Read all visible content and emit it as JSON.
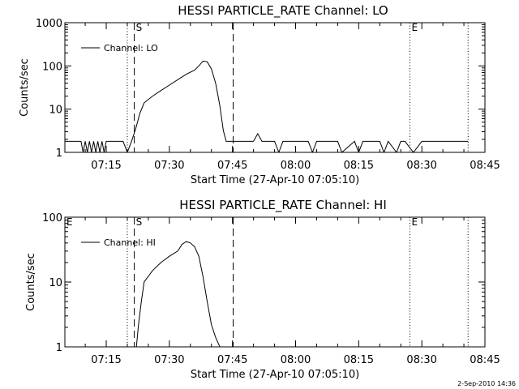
{
  "footer": {
    "stamp": "2-Sep-2010 14:36"
  },
  "chart_data": [
    {
      "type": "line",
      "title": "HESSI PARTICLE_RATE Channel: LO",
      "xlabel": "Start Time (27-Apr-10 07:05:10)",
      "ylabel": "Counts/sec",
      "yscale": "log",
      "xlim": [
        "07:05:10",
        "08:45:00"
      ],
      "ylim": [
        1,
        1000
      ],
      "xticks": [
        "07:15",
        "07:30",
        "07:45",
        "08:00",
        "08:15",
        "08:30",
        "08:45"
      ],
      "yticks": [
        "1",
        "10",
        "100",
        "1000"
      ],
      "legend": {
        "position": "top-left",
        "entries": [
          "Channel: LO"
        ]
      },
      "markers": [
        {
          "time": "07:20:00",
          "style": "dotted",
          "label": ""
        },
        {
          "time": "07:21:40",
          "style": "dashed",
          "label": "S"
        },
        {
          "time": "07:45:10",
          "style": "dashed",
          "label": ""
        },
        {
          "time": "08:27:10",
          "style": "dotted",
          "label": "E"
        },
        {
          "time": "08:41:00",
          "style": "dotted",
          "label": ""
        }
      ],
      "series": [
        {
          "name": "Channel: LO",
          "x": [
            "07:05:10",
            "07:09:00",
            "07:09:30",
            "07:10:00",
            "07:10:30",
            "07:11:00",
            "07:11:30",
            "07:12:00",
            "07:12:30",
            "07:13:00",
            "07:13:30",
            "07:14:00",
            "07:14:30",
            "07:15:00",
            "07:16:00",
            "07:17:00",
            "07:18:00",
            "07:19:00",
            "07:20:00",
            "07:21:00",
            "07:22:00",
            "07:23:00",
            "07:24:00",
            "07:26:00",
            "07:28:00",
            "07:30:00",
            "07:32:00",
            "07:34:00",
            "07:36:00",
            "07:37:00",
            "07:38:00",
            "07:39:00",
            "07:40:00",
            "07:41:00",
            "07:42:00",
            "07:42:50",
            "07:43:30",
            "07:45:00",
            "07:48:00",
            "07:50:00",
            "07:51:00",
            "07:52:00",
            "07:55:00",
            "07:56:00",
            "07:57:00",
            "07:58:00",
            "08:00:00",
            "08:03:00",
            "08:04:00",
            "08:05:00",
            "08:08:00",
            "08:10:00",
            "08:11:00",
            "08:14:00",
            "08:15:00",
            "08:16:00",
            "08:18:00",
            "08:20:00",
            "08:21:00",
            "08:22:00",
            "08:24:00",
            "08:25:00",
            "08:26:00",
            "08:28:00",
            "08:30:00",
            "08:33:00",
            "08:36:00",
            "08:40:00",
            "08:41:00"
          ],
          "y": [
            1.8,
            1.8,
            1,
            1.8,
            1,
            1.8,
            1,
            1.8,
            1,
            1.8,
            1,
            1.8,
            1,
            1.8,
            1.8,
            1.8,
            1.8,
            1.8,
            1,
            1.8,
            3.5,
            8,
            14,
            20,
            27,
            36,
            48,
            64,
            80,
            100,
            130,
            125,
            85,
            40,
            12,
            3.2,
            1.8,
            1.8,
            1.8,
            1.8,
            2.7,
            1.8,
            1.8,
            1,
            1.8,
            1.8,
            1.8,
            1.8,
            1,
            1.8,
            1.8,
            1.8,
            1,
            1.8,
            1,
            1.8,
            1.8,
            1.8,
            1,
            1.8,
            1,
            1.8,
            1.8,
            1,
            1.8,
            1.8,
            1.8,
            1.8,
            1.8
          ]
        }
      ]
    },
    {
      "type": "line",
      "title": "HESSI PARTICLE_RATE Channel: HI",
      "xlabel": "Start Time (27-Apr-10 07:05:10)",
      "ylabel": "Counts/sec",
      "yscale": "log",
      "xlim": [
        "07:05:10",
        "08:45:00"
      ],
      "ylim": [
        1,
        100
      ],
      "xticks": [
        "07:15",
        "07:30",
        "07:45",
        "08:00",
        "08:15",
        "08:30",
        "08:45"
      ],
      "yticks": [
        "1",
        "10",
        "100"
      ],
      "legend": {
        "position": "top-left",
        "entries": [
          "Channel: HI"
        ]
      },
      "corner_label": "E",
      "markers": [
        {
          "time": "07:20:00",
          "style": "dotted",
          "label": ""
        },
        {
          "time": "07:21:40",
          "style": "dashed",
          "label": "S"
        },
        {
          "time": "07:45:10",
          "style": "dashed",
          "label": ""
        },
        {
          "time": "08:27:10",
          "style": "dotted",
          "label": "E"
        },
        {
          "time": "08:41:00",
          "style": "dotted",
          "label": ""
        }
      ],
      "series": [
        {
          "name": "Channel: HI",
          "x": [
            "07:22:10",
            "07:22:40",
            "07:23:20",
            "07:24:00",
            "07:26:00",
            "07:28:00",
            "07:30:00",
            "07:32:00",
            "07:33:00",
            "07:34:00",
            "07:35:00",
            "07:36:00",
            "07:37:00",
            "07:38:00",
            "07:39:00",
            "07:40:00",
            "07:41:00",
            "07:42:00"
          ],
          "y": [
            1,
            2.2,
            5,
            10,
            15,
            20,
            25,
            30,
            38,
            42,
            40,
            35,
            25,
            12,
            5,
            2.2,
            1.4,
            1
          ]
        }
      ]
    }
  ]
}
